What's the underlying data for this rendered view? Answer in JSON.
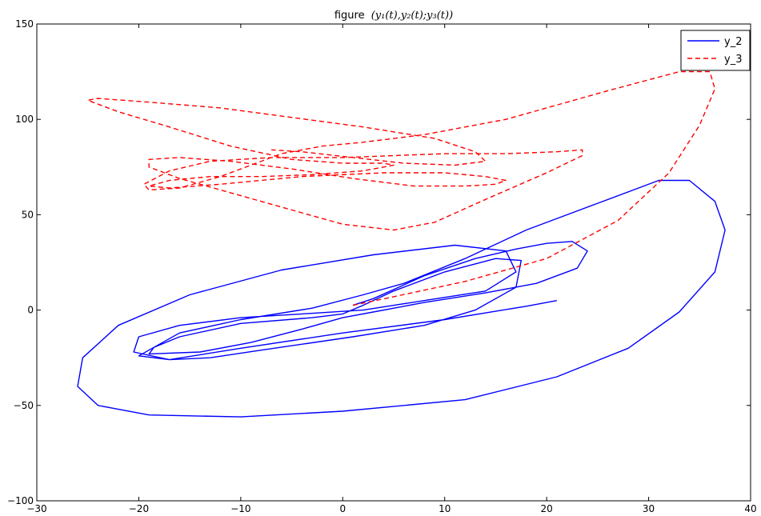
{
  "chart_data": {
    "type": "line",
    "title_prefix": "figure",
    "title_math": "(y₁(t),y₂(t);y₃(t))",
    "xlabel": "",
    "ylabel": "",
    "xlim": [
      -30,
      40
    ],
    "ylim": [
      -100,
      150
    ],
    "xticks": [
      -30,
      -20,
      -10,
      0,
      10,
      20,
      30,
      40
    ],
    "yticks": [
      -100,
      -50,
      0,
      50,
      100,
      150
    ],
    "grid": false,
    "legend_position": "top-right",
    "series": [
      {
        "name": "y_2",
        "color": "#0000ff",
        "dash": "solid",
        "points": [
          [
            1,
            2.5
          ],
          [
            3,
            6
          ],
          [
            8,
            18
          ],
          [
            13,
            27
          ],
          [
            17,
            32
          ],
          [
            20,
            35
          ],
          [
            22.5,
            36
          ],
          [
            24,
            31
          ],
          [
            23,
            22
          ],
          [
            19,
            14
          ],
          [
            14,
            9
          ],
          [
            8,
            4
          ],
          [
            3,
            -1
          ],
          [
            0,
            -4
          ],
          [
            -4,
            -10
          ],
          [
            -9,
            -17
          ],
          [
            -14,
            -22
          ],
          [
            -19,
            -23
          ],
          [
            -18.5,
            -19.5
          ],
          [
            -16,
            -14
          ],
          [
            -10,
            -7
          ],
          [
            -3,
            -4
          ],
          [
            0,
            -2
          ],
          [
            2,
            2.5
          ],
          [
            5,
            10
          ],
          [
            10,
            20
          ],
          [
            15,
            27
          ],
          [
            17.5,
            26
          ],
          [
            17,
            12
          ],
          [
            13,
            0
          ],
          [
            8,
            -8
          ],
          [
            1,
            -14
          ],
          [
            -8,
            -21
          ],
          [
            -13,
            -25
          ],
          [
            -17,
            -26
          ],
          [
            -20,
            -24
          ],
          [
            -16,
            -12
          ],
          [
            -10,
            -5
          ],
          [
            -3,
            1
          ],
          [
            2,
            8
          ],
          [
            6,
            14
          ],
          [
            12,
            27
          ],
          [
            18,
            42
          ],
          [
            25,
            56
          ],
          [
            31,
            68
          ],
          [
            34,
            68
          ],
          [
            36.5,
            57
          ],
          [
            37.5,
            42
          ],
          [
            36.5,
            20
          ],
          [
            33,
            -1
          ],
          [
            28,
            -20
          ],
          [
            21,
            -35
          ],
          [
            12,
            -47
          ],
          [
            0,
            -53
          ],
          [
            -10,
            -56
          ],
          [
            -19,
            -55
          ],
          [
            -24,
            -50
          ],
          [
            -26,
            -40
          ],
          [
            -25.5,
            -25
          ],
          [
            -22,
            -8
          ],
          [
            -15,
            8
          ],
          [
            -6,
            21
          ],
          [
            3,
            29
          ],
          [
            11,
            34
          ],
          [
            16,
            31
          ],
          [
            17,
            20
          ],
          [
            14,
            10
          ],
          [
            8,
            5
          ],
          [
            2,
            0
          ],
          [
            -4,
            -2
          ],
          [
            -10,
            -4
          ],
          [
            -16,
            -8
          ],
          [
            -20,
            -14
          ],
          [
            -20.5,
            -22
          ],
          [
            -17,
            -26
          ],
          [
            -10,
            -20
          ],
          [
            0,
            -12
          ],
          [
            10,
            -5
          ],
          [
            18,
            2
          ],
          [
            21,
            5
          ]
        ]
      },
      {
        "name": "y_3",
        "color": "#ff0000",
        "dash": "dashed",
        "points": [
          [
            1,
            2.5
          ],
          [
            5,
            7
          ],
          [
            12,
            15
          ],
          [
            20,
            27
          ],
          [
            27,
            47
          ],
          [
            32,
            72
          ],
          [
            35,
            97
          ],
          [
            36.5,
            116
          ],
          [
            36,
            125
          ],
          [
            33,
            125
          ],
          [
            26,
            115
          ],
          [
            16,
            100
          ],
          [
            8,
            92
          ],
          [
            2,
            88
          ],
          [
            -2,
            86
          ],
          [
            -6,
            82
          ],
          [
            -9,
            76
          ],
          [
            -12,
            70
          ],
          [
            -16,
            64
          ],
          [
            -19,
            63
          ],
          [
            -19.5,
            66
          ],
          [
            -17,
            73
          ],
          [
            -13,
            78
          ],
          [
            -7,
            80
          ],
          [
            0,
            80
          ],
          [
            5,
            81
          ],
          [
            10,
            82
          ],
          [
            16,
            82
          ],
          [
            21,
            83
          ],
          [
            23.5,
            84
          ],
          [
            23.5,
            81
          ],
          [
            20,
            72
          ],
          [
            14,
            58
          ],
          [
            9,
            46
          ],
          [
            5,
            42
          ],
          [
            0,
            45
          ],
          [
            -4,
            51
          ],
          [
            -8,
            57
          ],
          [
            -12,
            63
          ],
          [
            -16,
            69
          ],
          [
            -19,
            75
          ],
          [
            -19,
            79
          ],
          [
            -16,
            80
          ],
          [
            -11,
            78
          ],
          [
            -5,
            74
          ],
          [
            1,
            69
          ],
          [
            7,
            65
          ],
          [
            12,
            65
          ],
          [
            15,
            66
          ],
          [
            16,
            68
          ],
          [
            14,
            70
          ],
          [
            10,
            72
          ],
          [
            4,
            72
          ],
          [
            -4,
            70
          ],
          [
            -12,
            66
          ],
          [
            -17,
            64
          ],
          [
            -19,
            65
          ],
          [
            -17,
            68
          ],
          [
            -13,
            70
          ],
          [
            -8,
            70
          ],
          [
            -3,
            71
          ],
          [
            2,
            73
          ],
          [
            5,
            76
          ],
          [
            4,
            77
          ],
          [
            0,
            77
          ],
          [
            -5,
            79
          ],
          [
            -11,
            86
          ],
          [
            -17,
            96
          ],
          [
            -22,
            104
          ],
          [
            -25,
            110
          ],
          [
            -24,
            111
          ],
          [
            -19,
            109
          ],
          [
            -12,
            106
          ],
          [
            -5,
            101
          ],
          [
            2,
            96
          ],
          [
            9,
            90
          ],
          [
            13,
            83
          ],
          [
            14,
            78
          ],
          [
            11,
            76
          ],
          [
            6,
            77
          ],
          [
            1,
            80
          ],
          [
            -4,
            83
          ],
          [
            -7,
            84
          ]
        ]
      }
    ]
  }
}
